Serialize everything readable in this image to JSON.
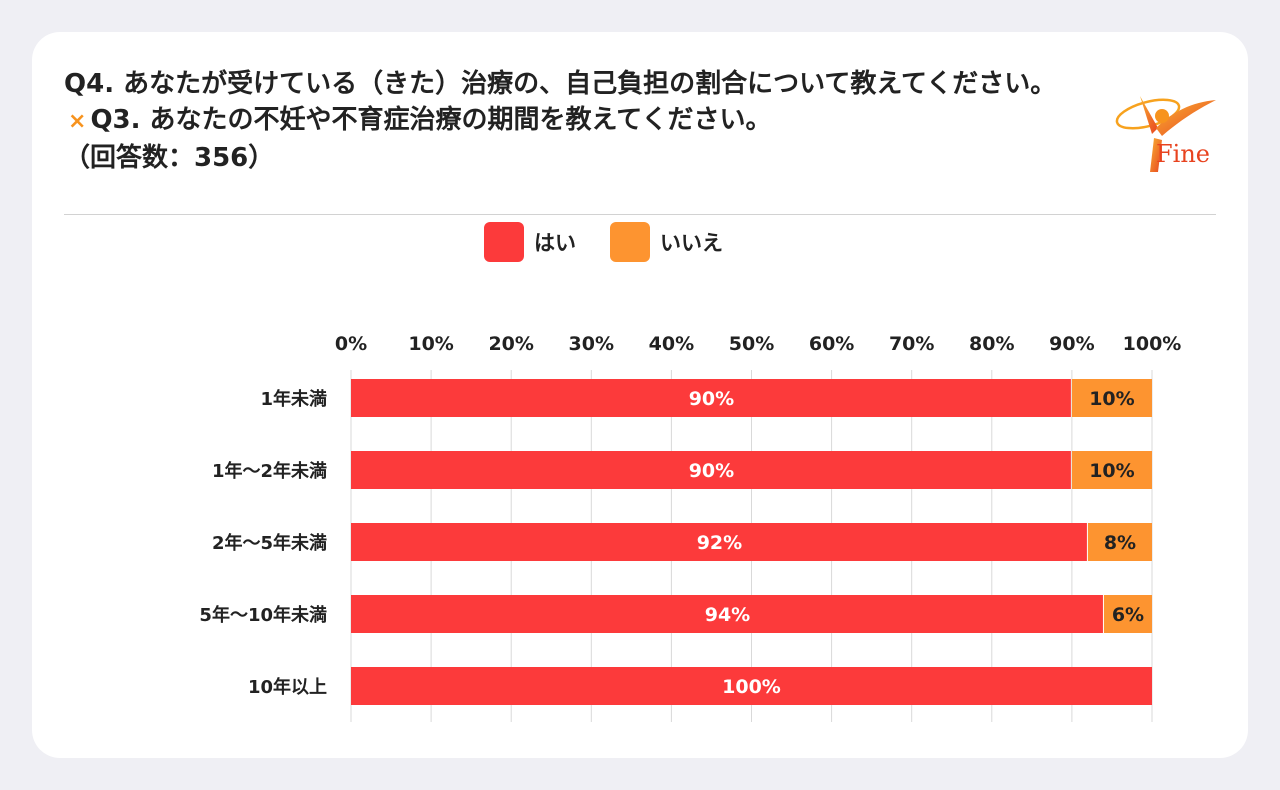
{
  "header": {
    "question_a": "Q4. あなたが受けている（きた）治療の、自己負担の割合について教えてください。",
    "times_mark": "×",
    "question_b": "Q3. あなたの不妊や不育症治療の期間を教えてください。",
    "respondents": "（回答数：356）"
  },
  "logo": {
    "text": "Fine"
  },
  "legend": {
    "items": [
      {
        "label": "はい",
        "color": "#fc3a3b"
      },
      {
        "label": "いいえ",
        "color": "#fd9430"
      }
    ]
  },
  "chart_data": {
    "type": "bar",
    "orientation": "horizontal",
    "stacked": true,
    "title": "",
    "xlim": [
      0,
      100
    ],
    "x_ticks": [
      "0%",
      "10%",
      "20%",
      "30%",
      "40%",
      "50%",
      "60%",
      "70%",
      "80%",
      "90%",
      "100%"
    ],
    "categories": [
      "1年未満",
      "1年〜2年未満",
      "2年〜5年未満",
      "5年〜10年未満",
      "10年以上"
    ],
    "series": [
      {
        "name": "はい",
        "values": [
          90,
          90,
          92,
          94,
          100
        ],
        "labels": [
          "90%",
          "90%",
          "92%",
          "94%",
          "100%"
        ],
        "color": "#fc3a3b"
      },
      {
        "name": "いいえ",
        "values": [
          10,
          10,
          8,
          6,
          0
        ],
        "labels": [
          "10%",
          "10%",
          "8%",
          "6%",
          ""
        ],
        "color": "#fd9430"
      }
    ],
    "grid": true,
    "legend_position": "top-center"
  }
}
